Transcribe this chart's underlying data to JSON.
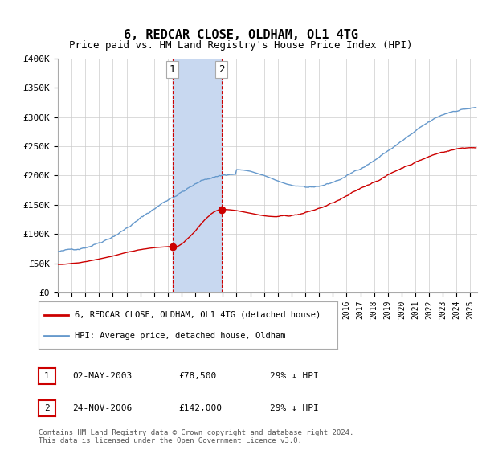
{
  "title": "6, REDCAR CLOSE, OLDHAM, OL1 4TG",
  "subtitle": "Price paid vs. HM Land Registry's House Price Index (HPI)",
  "ylabel_ticks": [
    "£0",
    "£50K",
    "£100K",
    "£150K",
    "£200K",
    "£250K",
    "£300K",
    "£350K",
    "£400K"
  ],
  "ylim": [
    0,
    400000
  ],
  "xlim_start": 1995.0,
  "xlim_end": 2025.5,
  "sale1_x": 2003.33,
  "sale1_y": 78500,
  "sale2_x": 2006.9,
  "sale2_y": 142000,
  "sale1_label": "1",
  "sale2_label": "2",
  "shaded_x1": 2003.33,
  "shaded_x2": 2006.9,
  "shaded_color": "#c8d8f0",
  "hpi_color": "#6699cc",
  "price_color": "#cc0000",
  "dot_color": "#cc0000",
  "vline_color": "#cc0000",
  "legend1": "6, REDCAR CLOSE, OLDHAM, OL1 4TG (detached house)",
  "legend2": "HPI: Average price, detached house, Oldham",
  "table_row1_num": "1",
  "table_row1_date": "02-MAY-2003",
  "table_row1_price": "£78,500",
  "table_row1_hpi": "29% ↓ HPI",
  "table_row2_num": "2",
  "table_row2_date": "24-NOV-2006",
  "table_row2_price": "£142,000",
  "table_row2_hpi": "29% ↓ HPI",
  "footnote": "Contains HM Land Registry data © Crown copyright and database right 2024.\nThis data is licensed under the Open Government Licence v3.0.",
  "bg_color": "#ffffff",
  "grid_color": "#cccccc"
}
